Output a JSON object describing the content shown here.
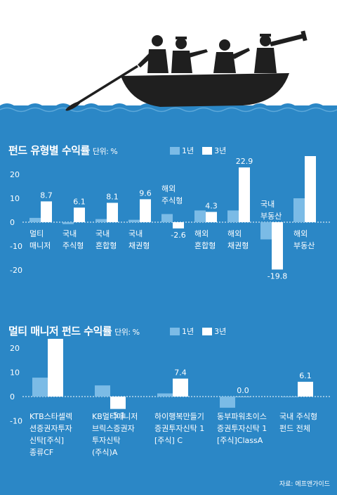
{
  "colors": {
    "background": "#2b87c6",
    "bar_1y": "#7bbbe6",
    "bar_3y": "#ffffff",
    "text": "#ffffff",
    "boat": "#1f1f1f"
  },
  "source": "자료: 에프앤가이드",
  "chart_data": [
    {
      "type": "bar",
      "title": "펀드 유형별 수익률",
      "unit": "단위: %",
      "legend": [
        "1년",
        "3년"
      ],
      "yticks": [
        "20",
        "10",
        "0",
        "-10",
        "-20"
      ],
      "ylim": [
        -20,
        30
      ],
      "categories": [
        [
          "멀티",
          "매니저"
        ],
        [
          "국내",
          "주식형"
        ],
        [
          "국내",
          "혼합형"
        ],
        [
          "국내",
          "채권형"
        ],
        [
          "해외",
          "주식형"
        ],
        [
          "해외",
          "혼합형"
        ],
        [
          "해외",
          "채권형"
        ],
        [
          "국내",
          "부동산"
        ],
        [
          "해외",
          "부동산"
        ]
      ],
      "series": [
        {
          "name": "1년",
          "values": [
            1.8,
            -0.8,
            1.3,
            1.0,
            3.4,
            4.9,
            4.9,
            -7.2,
            10.0
          ]
        },
        {
          "name": "3년",
          "values": [
            8.7,
            6.1,
            8.1,
            9.6,
            -2.6,
            4.3,
            22.9,
            -19.8,
            28.5
          ]
        }
      ],
      "value_labels": [
        "8.7",
        "6.1",
        "8.1",
        "9.6",
        "-2.6",
        "4.3",
        "22.9",
        "-19.8",
        "28.5%"
      ]
    },
    {
      "type": "bar",
      "title": "멀티 매니저 펀드 수익률",
      "unit": "단위: %",
      "legend": [
        "1년",
        "3년"
      ],
      "yticks": [
        "20",
        "10",
        "0",
        "-10"
      ],
      "ylim": [
        -10,
        25
      ],
      "categories": [
        [
          "KTB스타셀렉",
          "션증권자투자",
          "신탁[주식]",
          "종류CF"
        ],
        [
          "KB멀티매니저",
          "브릭스증권자",
          "투자신탁",
          "(주식)A"
        ],
        [
          "하이행복만들기",
          "증권투자신탁 1",
          "[주식] C"
        ],
        [
          "동부파워초이스",
          "증권투자신탁 1",
          "[주식]ClassA"
        ],
        [
          "국내 주식형",
          "펀드 전체"
        ]
      ],
      "series": [
        {
          "name": "1년",
          "values": [
            7.8,
            4.6,
            1.3,
            -4.6,
            -0.3
          ]
        },
        {
          "name": "3년",
          "values": [
            23.8,
            -5.1,
            7.4,
            0.0,
            6.1
          ]
        }
      ],
      "value_labels": [
        "23.8%",
        "-5.1",
        "7.4",
        "0.0",
        "6.1"
      ]
    }
  ]
}
